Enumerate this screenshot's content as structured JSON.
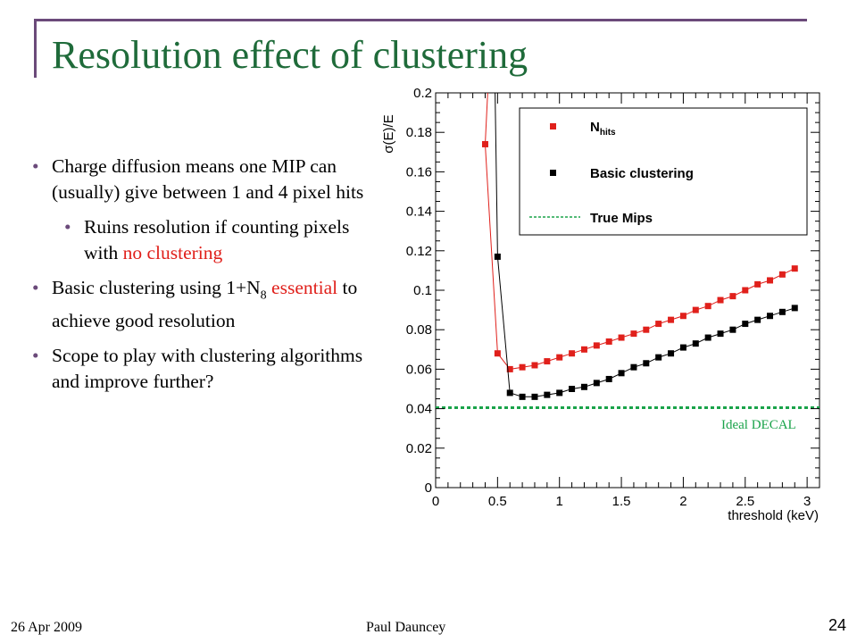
{
  "slide": {
    "title": "Resolution effect of clustering",
    "footer_date": "26 Apr 2009",
    "footer_author": "Paul Dauncey",
    "page_number": "24"
  },
  "bullets": {
    "b1": "Charge diffusion means one MIP can (usually) give between 1 and 4 pixel hits",
    "b2_pre": "Ruins resolution if counting pixels with ",
    "b2_red": "no clustering",
    "b3_pre": "Basic clustering using 1+N",
    "b3_sub": "8",
    "b3_red": "essential",
    "b3_post": " to achieve good resolution",
    "b4": "Scope to play with clustering algorithms and improve further?"
  },
  "chart_data": {
    "type": "line",
    "xlabel": "threshold (keV)",
    "ylabel": "σ(E)/E",
    "xlim": [
      0,
      3.1
    ],
    "ylim": [
      0,
      0.2
    ],
    "x_ticks": [
      "0",
      "0.5",
      "1",
      "1.5",
      "2",
      "2.5",
      "3"
    ],
    "y_ticks": [
      "0",
      "0.02",
      "0.04",
      "0.06",
      "0.08",
      "0.1",
      "0.12",
      "0.14",
      "0.16",
      "0.18",
      "0.2"
    ],
    "series": [
      {
        "name": "N",
        "name_sub": "hits",
        "color": "#e0201b",
        "x": [
          0.4,
          0.5,
          0.6,
          0.7,
          0.8,
          0.9,
          1.0,
          1.1,
          1.2,
          1.3,
          1.4,
          1.5,
          1.6,
          1.7,
          1.8,
          1.9,
          2.0,
          2.1,
          2.2,
          2.3,
          2.4,
          2.5,
          2.6,
          2.7,
          2.8,
          2.9
        ],
        "values": [
          0.174,
          0.068,
          0.06,
          0.061,
          0.062,
          0.064,
          0.066,
          0.068,
          0.07,
          0.072,
          0.074,
          0.076,
          0.078,
          0.08,
          0.083,
          0.085,
          0.087,
          0.09,
          0.092,
          0.095,
          0.097,
          0.1,
          0.103,
          0.105,
          0.108,
          0.111
        ],
        "entry_value": 0.2,
        "entry_x": 0.42
      },
      {
        "name": "Basic clustering",
        "color": "#000000",
        "x": [
          0.5,
          0.6,
          0.7,
          0.8,
          0.9,
          1.0,
          1.1,
          1.2,
          1.3,
          1.4,
          1.5,
          1.6,
          1.7,
          1.8,
          1.9,
          2.0,
          2.1,
          2.2,
          2.3,
          2.4,
          2.5,
          2.6,
          2.7,
          2.8,
          2.9
        ],
        "values": [
          0.117,
          0.048,
          0.046,
          0.046,
          0.047,
          0.048,
          0.05,
          0.051,
          0.053,
          0.055,
          0.058,
          0.061,
          0.063,
          0.066,
          0.068,
          0.071,
          0.073,
          0.076,
          0.078,
          0.08,
          0.083,
          0.085,
          0.087,
          0.089,
          0.091
        ],
        "entry_value": 0.2,
        "entry_x": 0.48
      }
    ],
    "reference_line": {
      "name": "True Mips",
      "value": 0.0405,
      "color": "#1aa34a",
      "annotation": "Ideal DECAL"
    },
    "legend": "top-right",
    "grid": false
  }
}
